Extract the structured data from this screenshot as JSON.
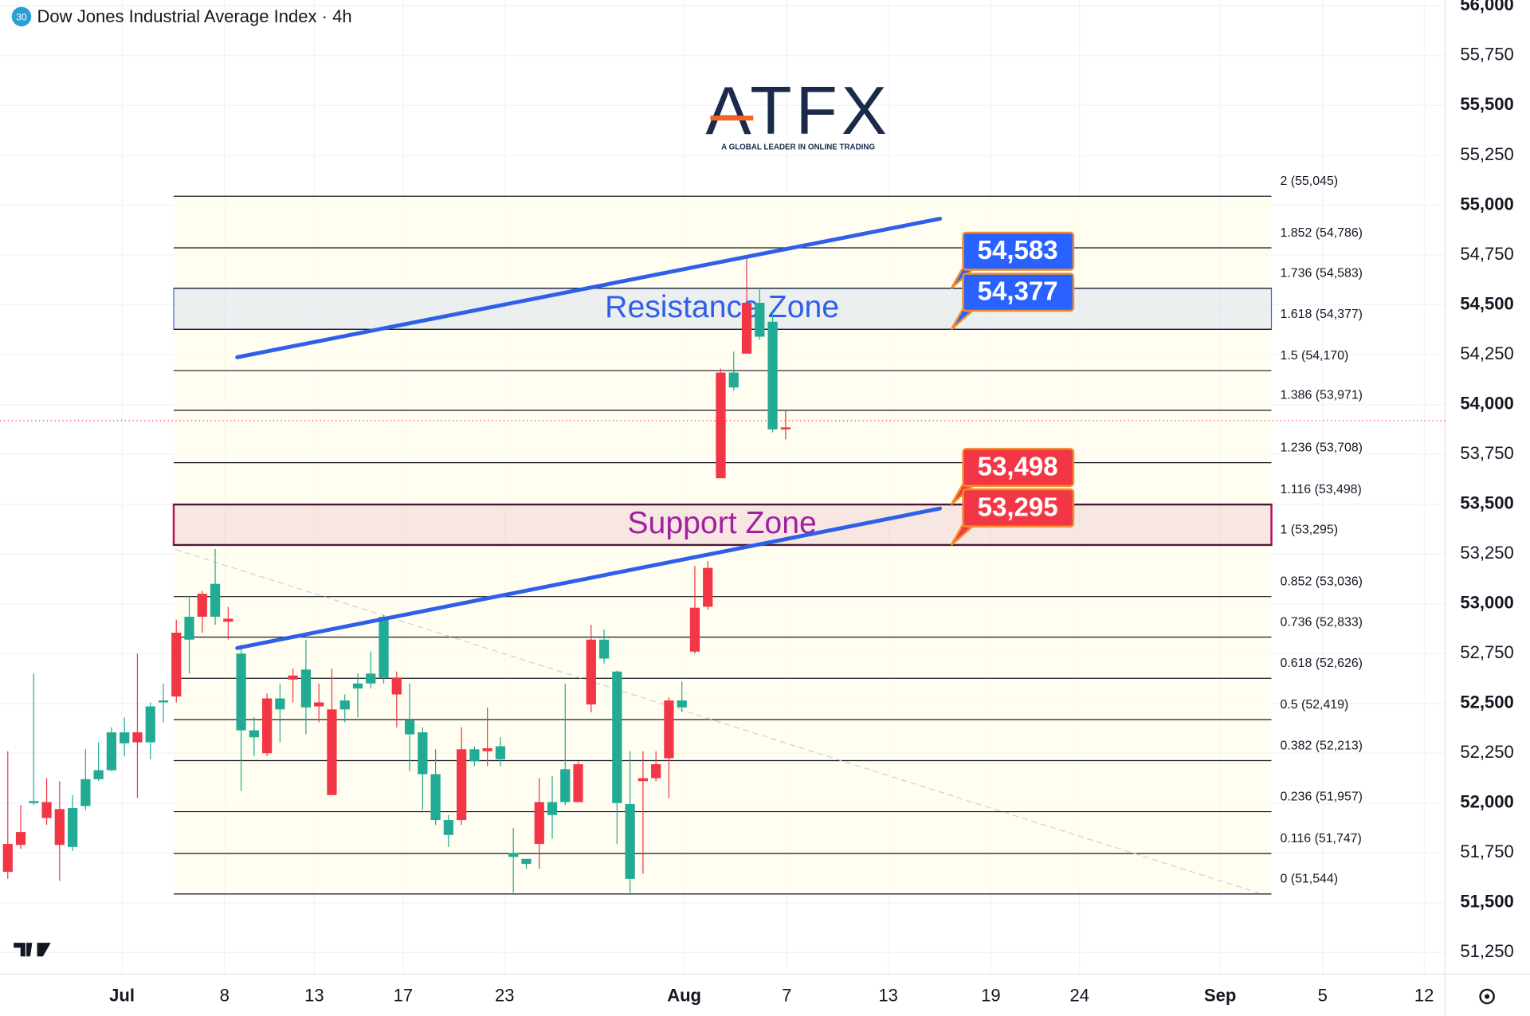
{
  "header": {
    "badge": "30",
    "title": "Dow Jones Industrial Average Index · 4h"
  },
  "logo": {
    "brand": "ATFX",
    "tagline": "A GLOBAL LEADER IN ONLINE TRADING"
  },
  "chart_data": {
    "type": "candlestick",
    "up_color": "#22ab94",
    "down_color": "#f23645",
    "candles": {
      "open": [
        51795,
        51855,
        52000,
        52005,
        51970,
        51780,
        51985,
        52120,
        52165,
        52300,
        52355,
        52305,
        52505,
        52855,
        52820,
        53050,
        52935,
        52925,
        52365,
        52330,
        52525,
        52470,
        52640,
        52480,
        52505,
        52470,
        52470,
        52575,
        52600,
        52630,
        52630,
        52345,
        52145,
        51915,
        51840,
        52270,
        52210,
        52275,
        52220,
        51730,
        51695,
        52005,
        51940,
        52005,
        52195,
        52820,
        52725,
        52000,
        51620,
        52125,
        52195,
        52515,
        52480,
        52980,
        53180,
        54160,
        54085,
        54510,
        54340,
        53875,
        53885
      ],
      "high": [
        52260,
        51990,
        52650,
        52125,
        52110,
        52040,
        52270,
        52305,
        52380,
        52430,
        52750,
        52505,
        52600,
        52920,
        53040,
        53065,
        53275,
        52985,
        52795,
        52430,
        52550,
        52600,
        52675,
        52820,
        52600,
        52675,
        52545,
        52650,
        52760,
        52945,
        52660,
        52600,
        52380,
        52270,
        51940,
        52380,
        52285,
        52480,
        52330,
        51875,
        51720,
        52125,
        52135,
        52600,
        52210,
        52895,
        52870,
        52665,
        52260,
        52260,
        52260,
        52530,
        52610,
        53190,
        53215,
        54180,
        54265,
        54730,
        54585,
        54460,
        53970
      ],
      "low": [
        51620,
        51770,
        51990,
        51890,
        51610,
        51760,
        51965,
        52110,
        52160,
        52235,
        52025,
        52220,
        52405,
        52505,
        52650,
        52855,
        52895,
        52820,
        52060,
        52235,
        52235,
        52305,
        52505,
        52345,
        52405,
        52040,
        52405,
        52430,
        52575,
        52600,
        52380,
        52160,
        51965,
        51890,
        51780,
        51890,
        52185,
        52185,
        52185,
        51550,
        51670,
        51670,
        51820,
        51990,
        52005,
        52455,
        52700,
        51795,
        51550,
        51645,
        52110,
        52025,
        52455,
        52750,
        52970,
        53630,
        54070,
        54255,
        54325,
        53860,
        53825
      ],
      "close": [
        51655,
        51790,
        52010,
        51925,
        51790,
        51975,
        52120,
        52165,
        52355,
        52355,
        52305,
        52485,
        52515,
        52535,
        52935,
        52935,
        53100,
        52910,
        52750,
        52365,
        52250,
        52525,
        52620,
        52670,
        52485,
        52040,
        52515,
        52600,
        52650,
        52935,
        52545,
        52415,
        52355,
        52145,
        51915,
        51915,
        52270,
        52260,
        52285,
        51750,
        51720,
        51795,
        52005,
        52170,
        52005,
        52495,
        52820,
        52660,
        51995,
        52110,
        52125,
        52225,
        52515,
        52760,
        52985,
        53630,
        54160,
        54255,
        54510,
        54415,
        53875
      ]
    },
    "ylim": [
      51070,
      56000
    ],
    "yticks": [
      {
        "value": 51250,
        "label": "51,250"
      },
      {
        "value": 51500,
        "label": "51,500"
      },
      {
        "value": 51750,
        "label": "51,750"
      },
      {
        "value": 52000,
        "label": "52,000"
      },
      {
        "value": 52250,
        "label": "52,250"
      },
      {
        "value": 52500,
        "label": "52,500"
      },
      {
        "value": 52750,
        "label": "52,750"
      },
      {
        "value": 53000,
        "label": "53,000"
      },
      {
        "value": 53250,
        "label": "53,250"
      },
      {
        "value": 53500,
        "label": "53,500"
      },
      {
        "value": 53750,
        "label": "53,750"
      },
      {
        "value": 54000,
        "label": "54,000"
      },
      {
        "value": 54250,
        "label": "54,250"
      },
      {
        "value": 54500,
        "label": "54,500"
      },
      {
        "value": 54750,
        "label": "54,750"
      },
      {
        "value": 55000,
        "label": "55,000"
      },
      {
        "value": 55250,
        "label": "55,250"
      },
      {
        "value": 55500,
        "label": "55,500"
      },
      {
        "value": 55750,
        "label": "55,750"
      },
      {
        "value": 56000,
        "label": "56,000"
      }
    ],
    "xlim": [
      -0.6,
      110.8
    ],
    "xticks": [
      {
        "value": 8.81,
        "label": "Jul"
      },
      {
        "value": 16.72,
        "label": "8"
      },
      {
        "value": 23.64,
        "label": "13"
      },
      {
        "value": 30.5,
        "label": "17"
      },
      {
        "value": 38.33,
        "label": "23"
      },
      {
        "value": 52.18,
        "label": "Aug"
      },
      {
        "value": 60.09,
        "label": "7"
      },
      {
        "value": 67.92,
        "label": "13"
      },
      {
        "value": 75.83,
        "label": "19"
      },
      {
        "value": 82.68,
        "label": "24"
      },
      {
        "value": 93.52,
        "label": "Sep"
      },
      {
        "value": 101.43,
        "label": "5"
      },
      {
        "value": 109.26,
        "label": "12"
      }
    ],
    "fib_levels": [
      {
        "value": 55045,
        "label": "2 (55,045)"
      },
      {
        "value": 54786,
        "label": "1.852 (54,786)"
      },
      {
        "value": 54583,
        "label": "1.736 (54,583)"
      },
      {
        "value": 54377,
        "label": "1.618 (54,377)"
      },
      {
        "value": 54170,
        "label": "1.5 (54,170)"
      },
      {
        "value": 53971,
        "label": "1.386 (53,971)"
      },
      {
        "value": 53708,
        "label": "1.236 (53,708)"
      },
      {
        "value": 53498,
        "label": "1.116 (53,498)"
      },
      {
        "value": 53295,
        "label": "1 (53,295)"
      },
      {
        "value": 53036,
        "label": "0.852 (53,036)"
      },
      {
        "value": 52833,
        "label": "0.736 (52,833)"
      },
      {
        "value": 52626,
        "label": "0.618 (52,626)"
      },
      {
        "value": 52419,
        "label": "0.5 (52,419)"
      },
      {
        "value": 52213,
        "label": "0.382 (52,213)"
      },
      {
        "value": 51957,
        "label": "0.236 (51,957)"
      },
      {
        "value": 51747,
        "label": "0.116 (51,747)"
      },
      {
        "value": 51544,
        "label": "0 (51,544)"
      }
    ],
    "zones": [
      {
        "label": "Resistance Zone",
        "low": 54377,
        "high": 54583,
        "color": "#3a67e0"
      },
      {
        "label": "Support Zone",
        "low": 53295,
        "high": 53498,
        "color": "#b5105a"
      }
    ],
    "price_labels": [
      {
        "value": 54583,
        "label": "54,583",
        "color": "#2962ff"
      },
      {
        "value": 54377,
        "label": "54,377",
        "color": "#2962ff"
      },
      {
        "value": 53498,
        "label": "53,498",
        "color": "#f23645"
      },
      {
        "value": 53295,
        "label": "53,295",
        "color": "#f23645"
      }
    ],
    "trend_lines": [
      {
        "x": [
          17.7,
          71.91
        ],
        "y": [
          54237,
          54932
        ],
        "color": "#2f5fe8"
      },
      {
        "x": [
          17.7,
          71.91
        ],
        "y": [
          52778,
          53478
        ],
        "color": "#2f5fe8"
      }
    ],
    "guide_line": {
      "x": [
        12.95,
        96.54
      ],
      "y": [
        53272,
        51548
      ],
      "color": "#d0d0d0"
    },
    "last_price": 53919
  }
}
